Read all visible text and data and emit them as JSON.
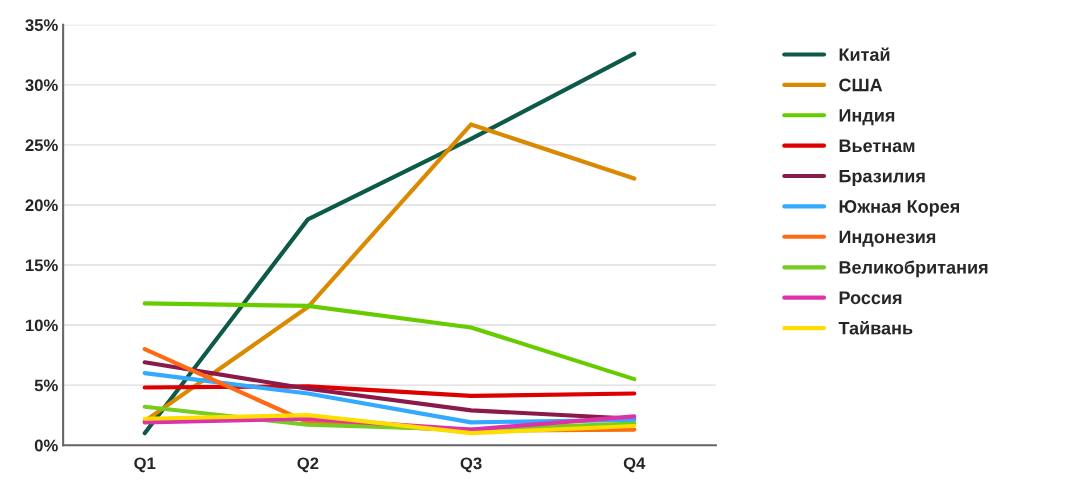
{
  "chart_data": {
    "type": "line",
    "categories": [
      "Q1",
      "Q2",
      "Q3",
      "Q4"
    ],
    "series": [
      {
        "name": "Китай",
        "color": "#0d5a48",
        "values": [
          1.0,
          18.8,
          25.5,
          32.6
        ]
      },
      {
        "name": "США",
        "color": "#d98a00",
        "values": [
          2.0,
          11.5,
          26.7,
          22.2
        ]
      },
      {
        "name": "Индия",
        "color": "#66cc00",
        "values": [
          11.8,
          11.6,
          9.8,
          5.5
        ]
      },
      {
        "name": "Вьетнам",
        "color": "#dd0000",
        "values": [
          4.8,
          4.9,
          4.1,
          4.3
        ]
      },
      {
        "name": "Бразилия",
        "color": "#8b1a4a",
        "values": [
          6.9,
          4.7,
          2.9,
          2.2
        ]
      },
      {
        "name": "Южная Корея",
        "color": "#33aaff",
        "values": [
          6.0,
          4.3,
          1.9,
          2.1
        ]
      },
      {
        "name": "Индонезия",
        "color": "#ff6a14",
        "values": [
          8.0,
          1.9,
          1.2,
          1.3
        ]
      },
      {
        "name": "Великобритания",
        "color": "#77cc22",
        "values": [
          3.2,
          1.7,
          1.3,
          1.8
        ]
      },
      {
        "name": "Россия",
        "color": "#dd33aa",
        "values": [
          1.9,
          2.2,
          1.3,
          2.4
        ]
      },
      {
        "name": "Тайвань",
        "color": "#ffdd00",
        "values": [
          2.2,
          2.5,
          1.0,
          1.6
        ]
      }
    ],
    "ylim": [
      0,
      35
    ],
    "yticks": [
      {
        "value": 0,
        "label": "0%"
      },
      {
        "value": 5,
        "label": "5%"
      },
      {
        "value": 10,
        "label": "10%"
      },
      {
        "value": 15,
        "label": "15%"
      },
      {
        "value": 20,
        "label": "20%"
      },
      {
        "value": 25,
        "label": "25%"
      },
      {
        "value": 30,
        "label": "30%"
      },
      {
        "value": 35,
        "label": "35%"
      }
    ],
    "grid": "y",
    "legend": "right",
    "marker": "none",
    "line_style": "solid"
  }
}
